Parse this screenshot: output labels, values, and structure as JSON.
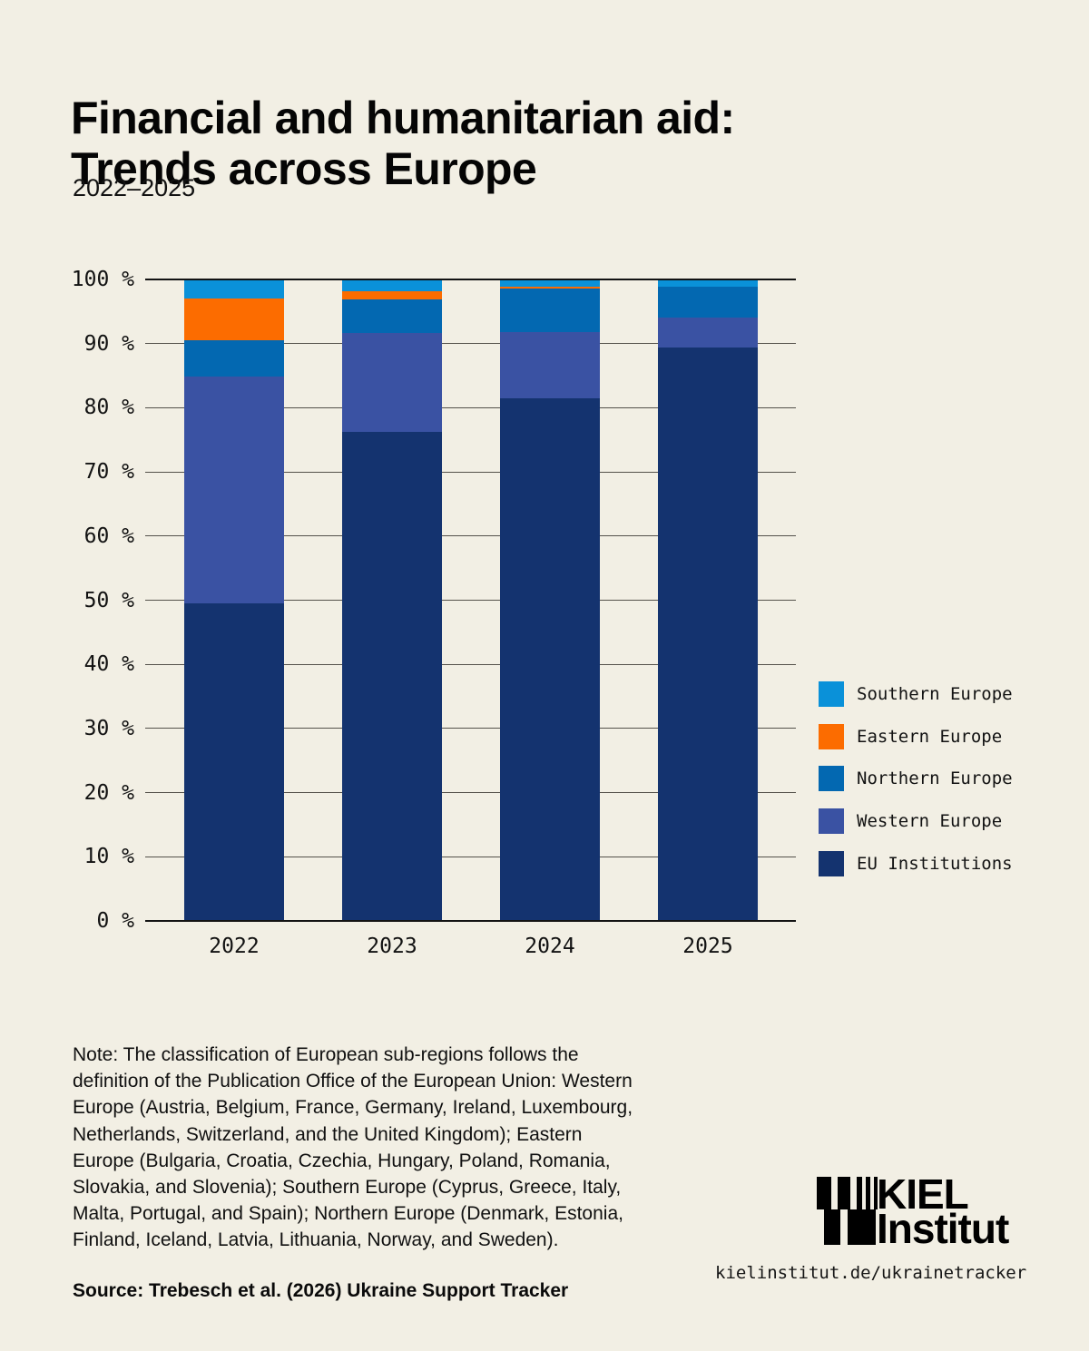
{
  "header": {
    "title_lines": [
      "Financial and humanitarian aid:",
      "Trends across Europe"
    ],
    "subtitle": "2022–2025"
  },
  "chart_data": {
    "type": "bar",
    "stacked": true,
    "unit": "%",
    "title": "Financial and humanitarian aid: Trends across Europe, 2022–2025",
    "categories": [
      "2022",
      "2023",
      "2024",
      "2025"
    ],
    "series": [
      {
        "name": "EU Institutions",
        "color": "#14336F",
        "values": [
          49.5,
          76.3,
          81.5,
          89.4
        ]
      },
      {
        "name": "Western Europe",
        "color": "#3A52A3",
        "values": [
          35.3,
          15.4,
          10.3,
          4.7
        ]
      },
      {
        "name": "Northern Europe",
        "color": "#0368B1",
        "values": [
          5.7,
          5.2,
          6.8,
          4.8
        ]
      },
      {
        "name": "Eastern Europe",
        "color": "#FC6C00",
        "values": [
          6.5,
          1.2,
          0.2,
          0.0
        ]
      },
      {
        "name": "Southern Europe",
        "color": "#0A91D9",
        "values": [
          3.0,
          1.9,
          1.2,
          1.1
        ]
      }
    ],
    "y_axis": {
      "min": 0,
      "max": 100,
      "step": 10,
      "tick_suffix": " %"
    },
    "legend_order": [
      "Southern Europe",
      "Eastern Europe",
      "Northern Europe",
      "Western Europe",
      "EU Institutions"
    ],
    "legend_position": "right",
    "grid": true
  },
  "note": {
    "lines": [
      "Note: The classification of European sub-regions follows the",
      "definition of the Publication Office of the European Union: Western",
      "Europe (Austria, Belgium, France, Germany, Ireland, Luxembourg,",
      "Netherlands, Switzerland, and the United Kingdom); Eastern",
      "Europe (Bulgaria, Croatia, Czechia, Hungary, Poland, Romania,",
      "Slovakia, and Slovenia); Southern Europe (Cyprus, Greece, Italy,",
      "Malta, Portugal, and Spain); Northern Europe (Denmark, Estonia,",
      "Finland, Iceland, Latvia, Lithuania, Norway, and Sweden)."
    ]
  },
  "source": {
    "text": "Source: Trebesch et al. (2026) Ukraine Support Tracker"
  },
  "branding": {
    "logo_line1": "KIEL",
    "logo_line2": "Institut",
    "url": "kielinstitut.de/ukrainetracker"
  },
  "colors": {
    "background": "#F2EFE4",
    "text": "#0B0B0B",
    "gridline": "#54514B",
    "axis_line": "#131313"
  }
}
